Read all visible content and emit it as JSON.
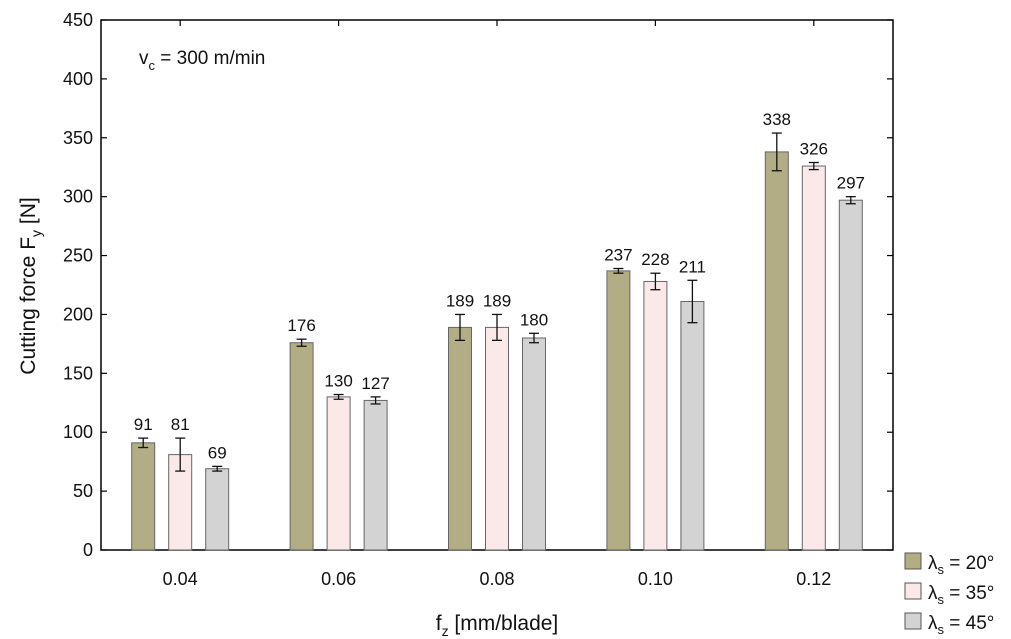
{
  "chart_data": {
    "type": "bar",
    "title": "",
    "annotation": {
      "main": "v",
      "sub": "c",
      "rest": " = 300 m/min"
    },
    "xlabel": {
      "main": "f",
      "sub": "z",
      "rest": " [mm/blade]"
    },
    "ylabel": {
      "main": "Cutting force F",
      "sub": "y",
      "rest": " [N]"
    },
    "categories": [
      "0.04",
      "0.06",
      "0.08",
      "0.10",
      "0.12"
    ],
    "ylim": [
      0,
      450
    ],
    "yticks": [
      0,
      50,
      100,
      150,
      200,
      250,
      300,
      350,
      400,
      450
    ],
    "grid": false,
    "legend_position": "bottom-right, outside plot",
    "series": [
      {
        "name": {
          "main": "λ",
          "sub": "s",
          "rest": " = 20°"
        },
        "color": "#b3ad85",
        "values": [
          91,
          176,
          189,
          237,
          338
        ],
        "errors": [
          4,
          3,
          11,
          2,
          16
        ]
      },
      {
        "name": {
          "main": "λ",
          "sub": "s",
          "rest": " = 35°"
        },
        "color": "#fbe8e8",
        "values": [
          81,
          130,
          189,
          228,
          326
        ],
        "errors": [
          14,
          2,
          11,
          7,
          3
        ]
      },
      {
        "name": {
          "main": "λ",
          "sub": "s",
          "rest": " = 45°"
        },
        "color": "#d3d3d3",
        "values": [
          69,
          127,
          180,
          211,
          297
        ],
        "errors": [
          2,
          3,
          4,
          18,
          3
        ]
      }
    ],
    "data_labels": [
      [
        "91",
        "176",
        "189",
        "237",
        "338"
      ],
      [
        "81",
        "130",
        "189",
        "228",
        "326"
      ],
      [
        "69",
        "127",
        "180",
        "211",
        "297"
      ]
    ]
  }
}
